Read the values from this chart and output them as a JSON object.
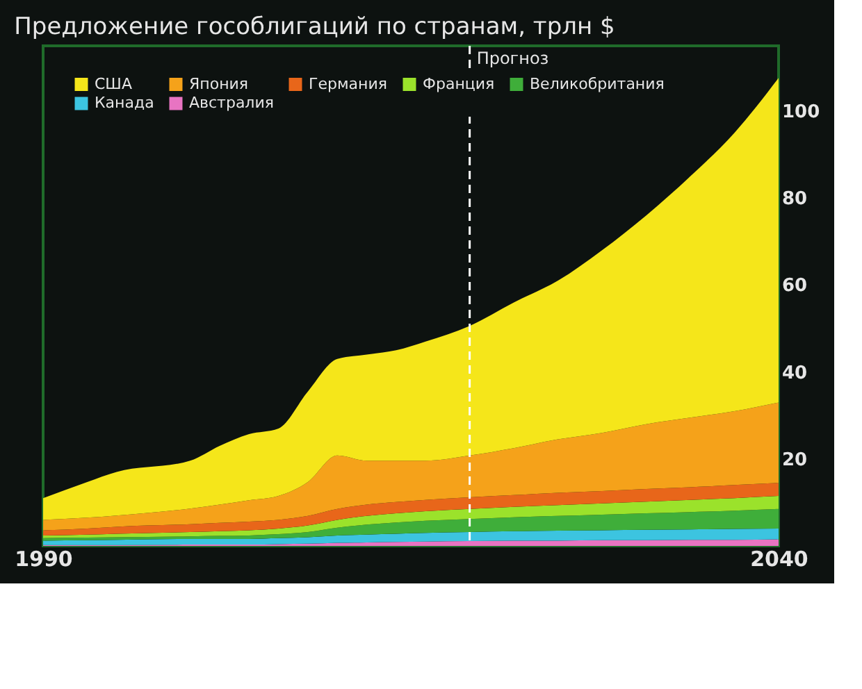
{
  "chart_data": {
    "type": "area",
    "stacked": true,
    "title": "Предложение гособлигаций по странам, трлн $",
    "x": [
      1990,
      1993,
      1995,
      2000,
      2002,
      2004,
      2006,
      2008,
      2010,
      2012,
      2014,
      2016,
      2019,
      2022,
      2025,
      2028,
      2031,
      2034,
      2037,
      2040
    ],
    "xlim": [
      1990,
      2040
    ],
    "xticks": [
      1990,
      2040
    ],
    "ylim": [
      0,
      115
    ],
    "yticks": [
      20,
      40,
      60,
      80,
      100
    ],
    "grid": false,
    "legend": "top left",
    "ref_lines": [
      {
        "axis": "x",
        "value": 2019,
        "label": "Прогноз",
        "color": "#ffffff",
        "line_style": "dashed"
      }
    ],
    "series": [
      {
        "name": "Австралия",
        "color": "#e874c2",
        "values": [
          0.2,
          0.2,
          0.2,
          0.3,
          0.3,
          0.3,
          0.4,
          0.5,
          0.7,
          0.8,
          0.9,
          1.0,
          1.1,
          1.2,
          1.2,
          1.3,
          1.3,
          1.4,
          1.4,
          1.5
        ]
      },
      {
        "name": "Канада",
        "color": "#3cc4e0",
        "values": [
          1.0,
          1.1,
          1.2,
          1.3,
          1.3,
          1.3,
          1.4,
          1.5,
          1.7,
          1.8,
          1.9,
          2.0,
          2.1,
          2.2,
          2.3,
          2.3,
          2.4,
          2.4,
          2.5,
          2.5
        ]
      },
      {
        "name": "Великобритания",
        "color": "#3fae3a",
        "values": [
          0.6,
          0.6,
          0.6,
          0.6,
          0.7,
          0.8,
          0.9,
          1.2,
          1.8,
          2.3,
          2.6,
          2.8,
          3.0,
          3.2,
          3.4,
          3.6,
          3.8,
          4.0,
          4.2,
          4.5
        ]
      },
      {
        "name": "Франция",
        "color": "#9be22b",
        "values": [
          0.6,
          0.7,
          0.8,
          1.0,
          1.1,
          1.2,
          1.3,
          1.5,
          1.8,
          2.0,
          2.1,
          2.2,
          2.3,
          2.4,
          2.5,
          2.6,
          2.7,
          2.8,
          2.9,
          3.0
        ]
      },
      {
        "name": "Германия",
        "color": "#e8661a",
        "values": [
          1.2,
          1.4,
          1.6,
          1.8,
          1.9,
          2.0,
          2.0,
          2.2,
          2.5,
          2.6,
          2.6,
          2.6,
          2.7,
          2.7,
          2.8,
          2.8,
          2.9,
          2.9,
          3.0,
          3.0
        ]
      },
      {
        "name": "Япония",
        "color": "#f5a21a",
        "values": [
          2.4,
          2.5,
          2.6,
          3.6,
          4.2,
          4.9,
          5.5,
          7.8,
          12.3,
          10.1,
          9.5,
          9.0,
          9.6,
          10.8,
          12.3,
          13.4,
          14.9,
          16.0,
          17.0,
          18.5
        ]
      },
      {
        "name": "США",
        "color": "#f5e61a",
        "values": [
          5,
          8.2,
          10,
          11,
          13.5,
          15.2,
          15.5,
          20.8,
          22.2,
          24.4,
          25.4,
          27.4,
          29.8,
          33.5,
          36.5,
          42,
          48,
          55.5,
          64,
          74.6
        ]
      }
    ]
  }
}
